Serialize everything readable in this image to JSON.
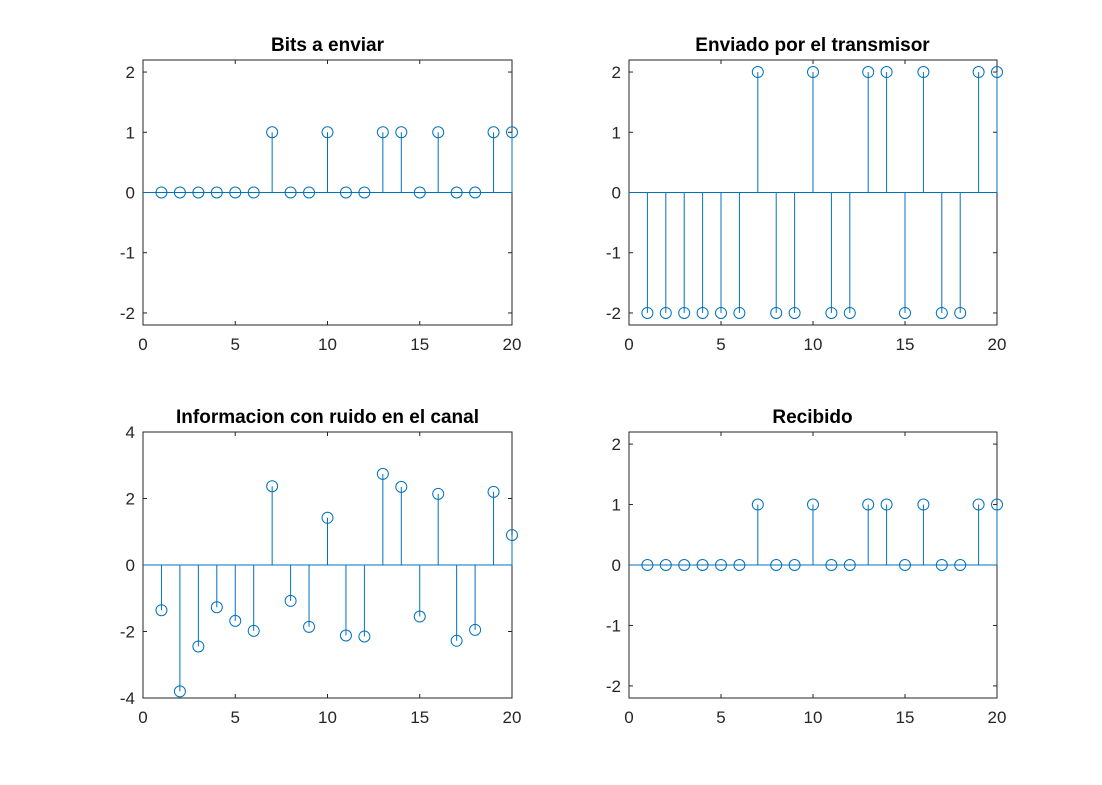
{
  "figure": {
    "background": "#ffffff",
    "stem_color": "#0072BD",
    "axis_color": "#262626"
  },
  "chart_data": [
    {
      "type": "stem",
      "title": "Bits a enviar",
      "xlim": [
        0,
        20
      ],
      "ylim": [
        -2.2,
        2.2
      ],
      "xticks": [
        0,
        5,
        10,
        15,
        20
      ],
      "yticks": [
        -2,
        -1,
        0,
        1,
        2
      ],
      "grid": false,
      "x": [
        1,
        2,
        3,
        4,
        5,
        6,
        7,
        8,
        9,
        10,
        11,
        12,
        13,
        14,
        15,
        16,
        17,
        18,
        19,
        20
      ],
      "y": [
        0,
        0,
        0,
        0,
        0,
        0,
        1,
        0,
        0,
        1,
        0,
        0,
        1,
        1,
        0,
        1,
        0,
        0,
        1,
        1
      ]
    },
    {
      "type": "stem",
      "title": "Enviado por el transmisor",
      "xlim": [
        0,
        20
      ],
      "ylim": [
        -2.2,
        2.2
      ],
      "xticks": [
        0,
        5,
        10,
        15,
        20
      ],
      "yticks": [
        -2,
        -1,
        0,
        1,
        2
      ],
      "grid": false,
      "x": [
        1,
        2,
        3,
        4,
        5,
        6,
        7,
        8,
        9,
        10,
        11,
        12,
        13,
        14,
        15,
        16,
        17,
        18,
        19,
        20
      ],
      "y": [
        -2,
        -2,
        -2,
        -2,
        -2,
        -2,
        2,
        -2,
        -2,
        2,
        -2,
        -2,
        2,
        2,
        -2,
        2,
        -2,
        -2,
        2,
        2
      ]
    },
    {
      "type": "stem",
      "title": "Informacion con ruido en el canal",
      "xlim": [
        0,
        20
      ],
      "ylim": [
        -4,
        4
      ],
      "xticks": [
        0,
        5,
        10,
        15,
        20
      ],
      "yticks": [
        -4,
        -2,
        0,
        2,
        4
      ],
      "grid": false,
      "x": [
        1,
        2,
        3,
        4,
        5,
        6,
        7,
        8,
        9,
        10,
        11,
        12,
        13,
        14,
        15,
        16,
        17,
        18,
        19,
        20
      ],
      "y": [
        -1.36,
        -3.8,
        -2.45,
        -1.27,
        -1.68,
        -1.98,
        2.37,
        -1.08,
        -1.86,
        1.42,
        -2.12,
        -2.15,
        2.74,
        2.35,
        -1.55,
        2.14,
        -2.28,
        -1.95,
        2.2,
        0.9
      ]
    },
    {
      "type": "stem",
      "title": "Recibido",
      "xlim": [
        0,
        20
      ],
      "ylim": [
        -2.2,
        2.2
      ],
      "xticks": [
        0,
        5,
        10,
        15,
        20
      ],
      "yticks": [
        -2,
        -1,
        0,
        1,
        2
      ],
      "grid": false,
      "x": [
        1,
        2,
        3,
        4,
        5,
        6,
        7,
        8,
        9,
        10,
        11,
        12,
        13,
        14,
        15,
        16,
        17,
        18,
        19,
        20
      ],
      "y": [
        0,
        0,
        0,
        0,
        0,
        0,
        1,
        0,
        0,
        1,
        0,
        0,
        1,
        1,
        0,
        1,
        0,
        0,
        1,
        1
      ]
    }
  ]
}
